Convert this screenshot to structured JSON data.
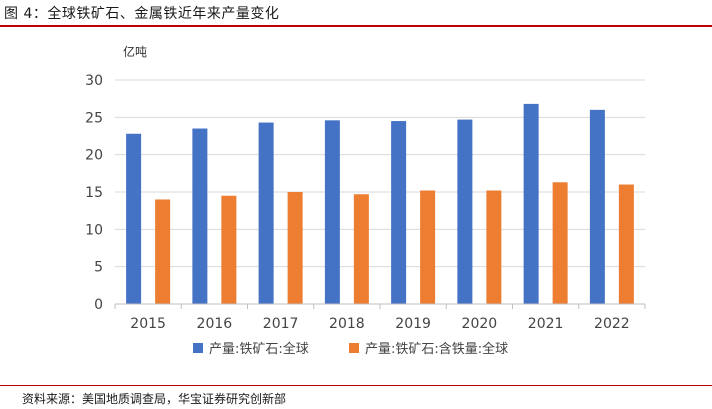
{
  "figure": {
    "title": "图 4：全球铁矿石、金属铁近年来产量变化",
    "source": "资料来源：美国地质调查局，华宝证券研究创新部"
  },
  "colors": {
    "accent_rule": "#c00000",
    "series_blue": "#4472c4",
    "series_orange": "#ed7d31"
  },
  "chart_data": {
    "type": "bar",
    "title": "",
    "ylabel": "亿吨",
    "xlabel": "",
    "categories": [
      "2015",
      "2016",
      "2017",
      "2018",
      "2019",
      "2020",
      "2021",
      "2022"
    ],
    "series": [
      {
        "name": "产量:铁矿石:全球",
        "color": "#4472c4",
        "values": [
          22.8,
          23.5,
          24.3,
          24.6,
          24.5,
          24.7,
          26.8,
          26.0
        ]
      },
      {
        "name": "产量:铁矿石:含铁量:全球",
        "color": "#ed7d31",
        "values": [
          14.0,
          14.5,
          15.0,
          14.7,
          15.2,
          15.2,
          16.3,
          16.0
        ]
      }
    ],
    "ylim": [
      0,
      30
    ],
    "yticks": [
      0,
      5,
      10,
      15,
      20,
      25,
      30
    ],
    "grid": true,
    "legend_position": "bottom"
  }
}
